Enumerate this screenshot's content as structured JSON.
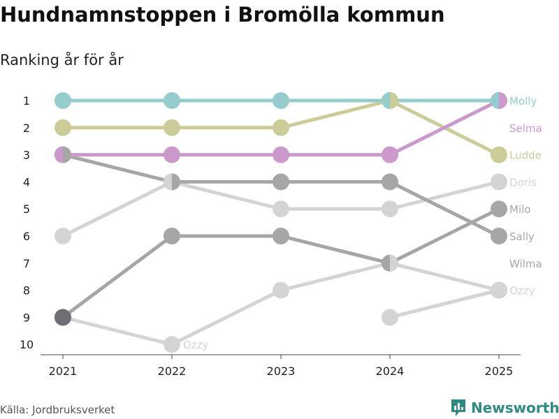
{
  "title": "Hundnamnstoppen i Bromölla kommun",
  "subtitle": "Ranking år för år",
  "source": "Källa: Jordbruksverket",
  "brand": "Newsworthy",
  "brand_color": "#2f8a84",
  "brand_icon": "bar-chart-icon",
  "chart_data": {
    "type": "line",
    "x": [
      "2021",
      "2022",
      "2023",
      "2024",
      "2025"
    ],
    "y_ticks": [
      1,
      2,
      3,
      4,
      5,
      6,
      7,
      8,
      9,
      10
    ],
    "ylim": [
      1,
      10
    ],
    "y_inverted": true,
    "grid": false,
    "series": [
      {
        "name": "Molly",
        "color": "#96cccc",
        "ranks": [
          1,
          1,
          1,
          1,
          1
        ]
      },
      {
        "name": "Selma",
        "color": "#cc99cc",
        "ranks": [
          3,
          3,
          3,
          3,
          1
        ]
      },
      {
        "name": "Ludde",
        "color": "#cccc99",
        "ranks": [
          2,
          2,
          2,
          1,
          3
        ]
      },
      {
        "name": "Doris",
        "color": "#d4d4d4",
        "ranks": [
          6,
          4,
          5,
          5,
          4
        ]
      },
      {
        "name": "Milo",
        "color": "#a6a6a6",
        "ranks": [
          9,
          6,
          6,
          7,
          5
        ]
      },
      {
        "name": "Sally",
        "color": "#a6a6a6",
        "ranks": [
          3,
          4,
          4,
          4,
          6
        ]
      },
      {
        "name": "Wilma",
        "color": "#a6a6a6",
        "ranks": [
          null,
          null,
          null,
          null,
          null
        ]
      },
      {
        "name": "Ozzy",
        "color": "#d4d4d4",
        "ranks": [
          9,
          10,
          8,
          7,
          8
        ]
      },
      {
        "name": "",
        "color": "#d4d4d4",
        "ranks": [
          null,
          null,
          null,
          9,
          8
        ]
      }
    ],
    "special_points": [
      {
        "year": "2021",
        "rank": 9,
        "color": "#6e6e73"
      }
    ],
    "inline_labels": [
      {
        "text": "Ozzy",
        "year": "2022",
        "rank": 10,
        "color": "#d4d4d4"
      }
    ]
  }
}
